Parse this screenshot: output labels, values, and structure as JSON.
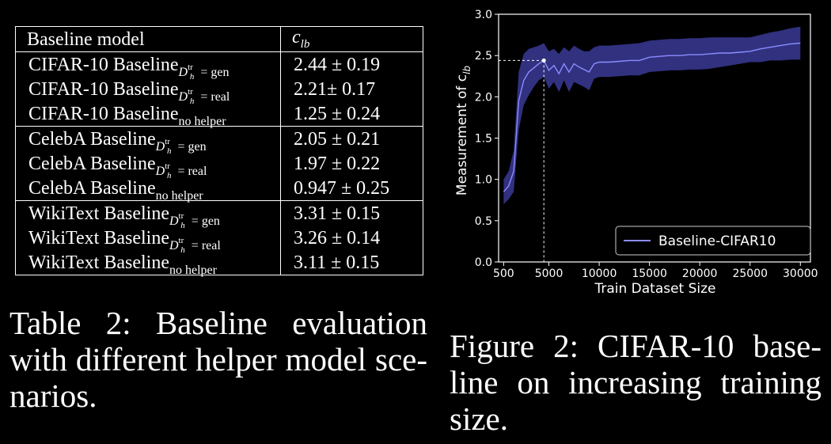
{
  "table": {
    "header": {
      "model": "Baseline model",
      "clb_main": "c",
      "clb_sub": "lb"
    },
    "groups": [
      {
        "rows": [
          {
            "name": "CIFAR-10 Baseline",
            "sub": "gen",
            "value": "2.44 ± 0.19",
            "bold": true
          },
          {
            "name": "CIFAR-10 Baseline",
            "sub": "real",
            "value": "2.21± 0.17",
            "bold": false
          },
          {
            "name": "CIFAR-10 Baseline",
            "sub": "no helper",
            "value": "1.25 ± 0.24",
            "bold": false
          }
        ]
      },
      {
        "rows": [
          {
            "name": "CelebA Baseline",
            "sub": "gen",
            "value": "2.05 ± 0.21",
            "bold": true
          },
          {
            "name": "CelebA Baseline",
            "sub": "real",
            "value": "1.97 ± 0.22",
            "bold": false
          },
          {
            "name": "CelebA Baseline",
            "sub": "no helper",
            "value": "0.947 ± 0.25",
            "bold": false
          }
        ]
      },
      {
        "rows": [
          {
            "name": "WikiText Baseline",
            "sub": "gen",
            "value": "3.31 ± 0.15",
            "bold": true
          },
          {
            "name": "WikiText Baseline",
            "sub": "real",
            "value": "3.26 ± 0.14",
            "bold": false
          },
          {
            "name": "WikiText Baseline",
            "sub": "no helper",
            "value": "3.11 ± 0.15",
            "bold": false
          }
        ]
      }
    ],
    "helper_symbol": {
      "d": "D",
      "sup": "tr",
      "sub": "h"
    }
  },
  "table_caption": {
    "lines": [
      "Table 2: Baseline evaluation",
      "with different helper model sce-",
      "narios."
    ]
  },
  "figure_caption": {
    "lines": [
      "Figure 2: CIFAR-10 base-",
      "line on increasing training",
      "size."
    ]
  },
  "chart_data": {
    "type": "line",
    "xlabel": "Train Dataset Size",
    "ylabel_main": "Measurement of c",
    "ylabel_sub": "lb",
    "xlim": [
      0,
      31000
    ],
    "ylim": [
      0.0,
      3.0
    ],
    "xticks": [
      500,
      5000,
      10000,
      15000,
      20000,
      25000,
      30000
    ],
    "yticks": [
      "0.0",
      "0.5",
      "1.0",
      "1.5",
      "2.0",
      "2.5",
      "3.0"
    ],
    "grid": false,
    "legend_position": "bottom-right",
    "series": [
      {
        "name": "Baseline-CIFAR10",
        "color": "#8c8cff",
        "band_color": "#3a3a96",
        "x": [
          500,
          1000,
          1500,
          2000,
          2500,
          3000,
          3500,
          4000,
          4500,
          5000,
          5500,
          6000,
          6500,
          7000,
          7500,
          8000,
          8500,
          9000,
          9500,
          10000,
          11000,
          12000,
          13000,
          14000,
          15000,
          16000,
          17000,
          18000,
          19000,
          20000,
          21000,
          22000,
          23000,
          24000,
          25000,
          26000,
          27000,
          28000,
          29000,
          30000
        ],
        "y": [
          0.85,
          0.92,
          1.1,
          1.95,
          2.2,
          2.3,
          2.35,
          2.4,
          2.44,
          2.32,
          2.38,
          2.28,
          2.4,
          2.3,
          2.4,
          2.36,
          2.33,
          2.3,
          2.4,
          2.42,
          2.42,
          2.43,
          2.44,
          2.44,
          2.48,
          2.49,
          2.5,
          2.5,
          2.51,
          2.51,
          2.52,
          2.53,
          2.53,
          2.54,
          2.55,
          2.58,
          2.6,
          2.62,
          2.64,
          2.65
        ],
        "upper": [
          1.0,
          1.1,
          1.35,
          2.3,
          2.52,
          2.58,
          2.6,
          2.62,
          2.65,
          2.55,
          2.58,
          2.52,
          2.6,
          2.55,
          2.62,
          2.58,
          2.55,
          2.55,
          2.6,
          2.62,
          2.62,
          2.63,
          2.64,
          2.65,
          2.68,
          2.69,
          2.7,
          2.7,
          2.71,
          2.71,
          2.72,
          2.72,
          2.72,
          2.72,
          2.72,
          2.75,
          2.78,
          2.8,
          2.83,
          2.85
        ],
        "lower": [
          0.7,
          0.76,
          0.85,
          1.6,
          1.9,
          2.02,
          2.12,
          2.2,
          2.24,
          2.1,
          2.18,
          2.06,
          2.2,
          2.06,
          2.18,
          2.15,
          2.12,
          2.08,
          2.22,
          2.24,
          2.24,
          2.25,
          2.26,
          2.26,
          2.3,
          2.31,
          2.32,
          2.32,
          2.33,
          2.33,
          2.34,
          2.36,
          2.38,
          2.4,
          2.42,
          2.42,
          2.44,
          2.44,
          2.45,
          2.45
        ]
      }
    ],
    "highlight_point": {
      "x": 4500,
      "y": 2.44
    }
  }
}
